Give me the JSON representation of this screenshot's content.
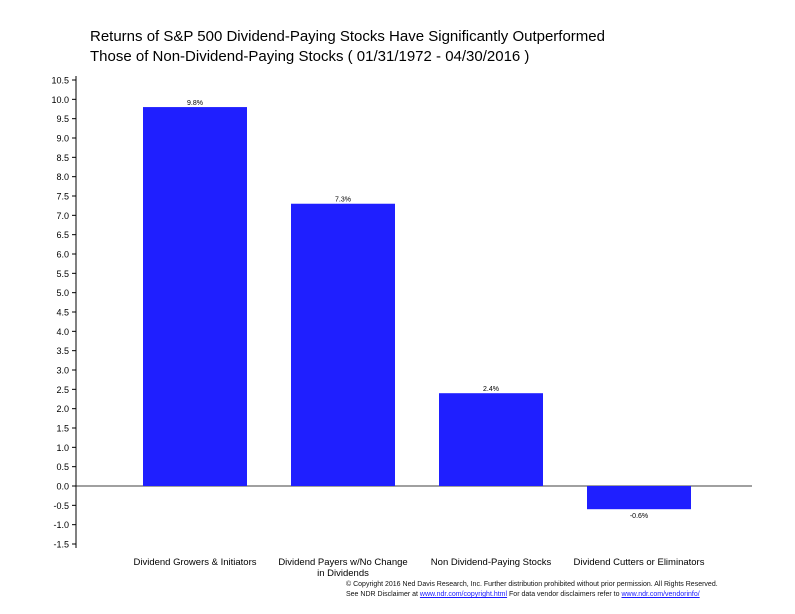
{
  "chart_data": {
    "type": "bar",
    "title_lines": [
      "Returns of S&P 500 Dividend-Paying Stocks Have Significantly Outperformed",
      "Those of Non-Dividend-Paying Stocks ( 01/31/1972 - 04/30/2016 )"
    ],
    "categories": [
      [
        "Dividend Growers & Initiators"
      ],
      [
        "Dividend Payers w/No Change",
        "in Dividends"
      ],
      [
        "Non Dividend-Paying Stocks"
      ],
      [
        "Dividend Cutters or Eliminators"
      ]
    ],
    "values": [
      9.8,
      7.3,
      2.4,
      -0.6
    ],
    "value_labels": [
      "9.8%",
      "7.3%",
      "2.4%",
      "-0.6%"
    ],
    "ylim": [
      -1.5,
      10.5
    ],
    "ytick_step": 0.5,
    "yticks": [
      "10.5",
      "10.0",
      "9.5",
      "9.0",
      "8.5",
      "8.0",
      "7.5",
      "7.0",
      "6.5",
      "6.0",
      "5.5",
      "5.0",
      "4.5",
      "4.0",
      "3.5",
      "3.0",
      "2.5",
      "2.0",
      "1.5",
      "1.0",
      "0.5",
      "0.0",
      "-0.5",
      "-1.0",
      "-1.5"
    ],
    "bar_color": "#1f1fff",
    "grid": false
  },
  "footer": {
    "line1": "© Copyright 2016 Ned Davis Research, Inc. Further distribution prohibited without prior permission. All Rights Reserved.",
    "line2_prefix": "See NDR Disclaimer at ",
    "line2_link1": "www.ndr.com/copyright.html",
    "line2_middle": "  For data vendor disclaimers refer to ",
    "line2_link2": "www.ndr.com/vendorinfo/"
  }
}
